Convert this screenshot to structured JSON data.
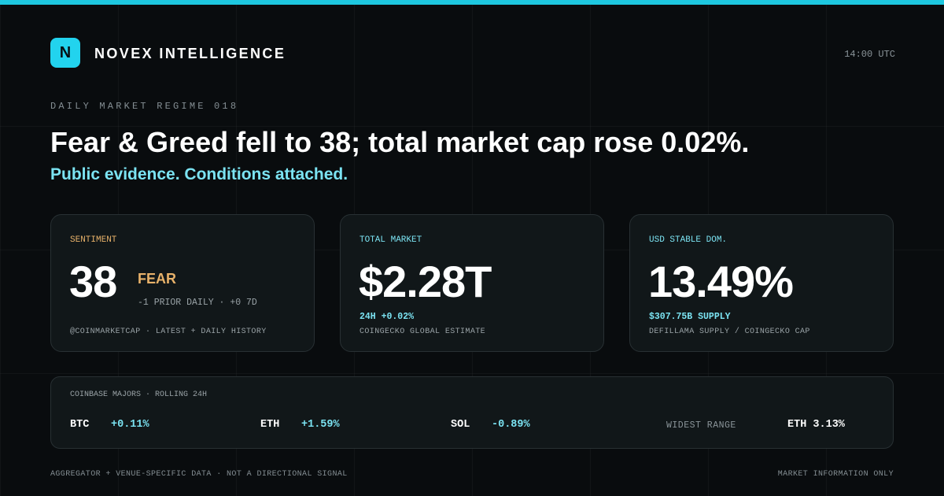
{
  "header": {
    "logo": "N",
    "brand": "NOVEX INTELLIGENCE",
    "time": "14:00 UTC"
  },
  "kicker": "DAILY MARKET REGIME 018",
  "headline": "Fear & Greed fell to 38; total market cap rose 0.02%.",
  "subhead": "Public evidence. Conditions attached.",
  "cards": [
    {
      "label": "SENTIMENT",
      "value": "38",
      "tag": "FEAR",
      "detail": "-1 PRIOR DAILY · +0 7D",
      "source": "@COINMARKETCAP · LATEST + DAILY HISTORY"
    },
    {
      "label": "TOTAL MARKET",
      "value": "$2.28T",
      "detail": "24H +0.02%",
      "source": "COINGECKO GLOBAL ESTIMATE"
    },
    {
      "label": "USD STABLE DOM.",
      "value": "13.49%",
      "detail": "$307.75B SUPPLY",
      "source": "DEFILLAMA SUPPLY / COINGECKO CAP"
    }
  ],
  "majors": {
    "label": "COINBASE MAJORS · ROLLING 24H",
    "items": [
      {
        "symbol": "BTC",
        "change": "+0.11%"
      },
      {
        "symbol": "ETH",
        "change": "+1.59%"
      },
      {
        "symbol": "SOL",
        "change": "-0.89%"
      }
    ],
    "widest_label": "WIDEST RANGE",
    "widest_value": "ETH 3.13%"
  },
  "footer": {
    "left": "AGGREGATOR + VENUE-SPECIFIC DATA · NOT A DIRECTIONAL SIGNAL",
    "right": "MARKET INFORMATION ONLY"
  }
}
